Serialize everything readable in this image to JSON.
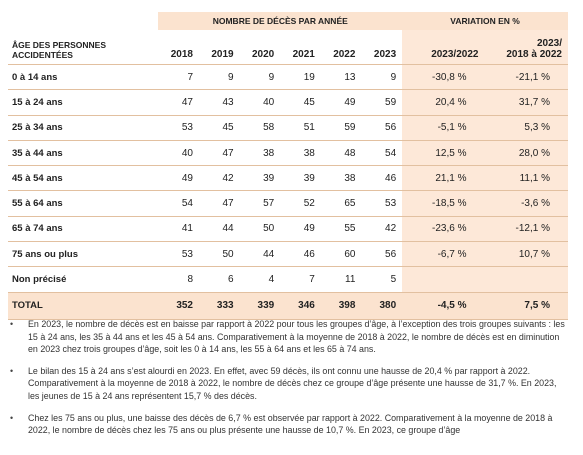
{
  "table": {
    "group_headers": {
      "deaths": "NOMBRE DE DÉCÈS PAR ANNÉE",
      "variation": "VARIATION EN %"
    },
    "label_header": "ÂGE DES PERSONNES ACCIDENTÉES",
    "years": [
      "2018",
      "2019",
      "2020",
      "2021",
      "2022",
      "2023"
    ],
    "var_headers": [
      "2023/2022",
      "2023/ 2018 à 2022"
    ],
    "rows": [
      {
        "label": "0 à 14 ans",
        "values": [
          "7",
          "9",
          "9",
          "19",
          "13",
          "9"
        ],
        "var1": "-30,8 %",
        "var2": "-21,1 %"
      },
      {
        "label": "15 à 24 ans",
        "values": [
          "47",
          "43",
          "40",
          "45",
          "49",
          "59"
        ],
        "var1": "20,4 %",
        "var2": "31,7 %"
      },
      {
        "label": "25 à 34 ans",
        "values": [
          "53",
          "45",
          "58",
          "51",
          "59",
          "56"
        ],
        "var1": "-5,1 %",
        "var2": "5,3 %"
      },
      {
        "label": "35 à 44 ans",
        "values": [
          "40",
          "47",
          "38",
          "38",
          "48",
          "54"
        ],
        "var1": "12,5 %",
        "var2": "28,0 %"
      },
      {
        "label": "45 à 54 ans",
        "values": [
          "49",
          "42",
          "39",
          "39",
          "38",
          "46"
        ],
        "var1": "21,1 %",
        "var2": "11,1 %"
      },
      {
        "label": "55 à 64 ans",
        "values": [
          "54",
          "47",
          "57",
          "52",
          "65",
          "53"
        ],
        "var1": "-18,5 %",
        "var2": "-3,6 %"
      },
      {
        "label": "65 à 74 ans",
        "values": [
          "41",
          "44",
          "50",
          "49",
          "55",
          "42"
        ],
        "var1": "-23,6 %",
        "var2": "-12,1 %"
      },
      {
        "label": "75 ans ou plus",
        "values": [
          "53",
          "50",
          "44",
          "46",
          "60",
          "56"
        ],
        "var1": "-6,7 %",
        "var2": "10,7 %"
      },
      {
        "label": "Non précisé",
        "values": [
          "8",
          "6",
          "4",
          "7",
          "11",
          "5"
        ],
        "var1": "",
        "var2": ""
      }
    ],
    "total": {
      "label": "TOTAL",
      "values": [
        "352",
        "333",
        "339",
        "346",
        "398",
        "380"
      ],
      "var1": "-4,5 %",
      "var2": "7,5 %"
    }
  },
  "bullets": [
    "En 2023, le nombre de décès est en baisse par rapport à 2022 pour tous les groupes d’âge, à l’exception des trois groupes suivants : les 15 à 24 ans, les 35 à 44 ans et les 45 à 54 ans. Comparativement à la moyenne de 2018 à 2022, le nombre de décès est en diminution en 2023 chez trois groupes d’âge, soit les 0 à 14 ans, les 55 à 64 ans et les 65 à 74 ans.",
    "Le bilan des 15 à 24 ans s’est alourdi en 2023. En effet, avec 59 décès, ils ont connu une hausse de 20,4 % par rapport à 2022. Comparativement à la moyenne de 2018 à 2022, le nombre de décès chez ce groupe d’âge présente une hausse de 31,7 %. En 2023, les jeunes de 15 à 24 ans représentent 15,7 % des décès.",
    "Chez les 75 ans ou plus, une baisse des décès de 6,7 % est observée par rapport à 2022. Comparativement à la moyenne de 2018 à 2022, le nombre de décès chez les 75 ans ou plus présente une hausse de 10,7 %. En 2023, ce groupe d’âge"
  ]
}
